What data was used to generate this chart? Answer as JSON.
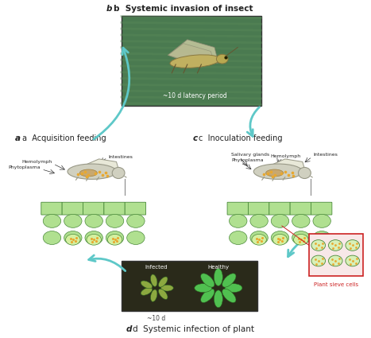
{
  "bg_color": "#ffffff",
  "title_b": "b  Systemic invasion of insect",
  "title_a": "a  Acquisition feeding",
  "title_c": "c  Inoculation feeding",
  "title_d": "d  Systemic infection of plant",
  "label_latency": "~10 d latency period",
  "label_10d": "~10 d",
  "label_infected": "Infected",
  "label_healthy": "Healthy",
  "label_phytoplasma_a": "Phytoplasma",
  "label_hemolymph_a": "Hemolymph",
  "label_intestines_a": "Intestines",
  "label_salivary": "Salivary glands",
  "label_phytoplasma_c": "Phytoplasma",
  "label_hemolymph_c": "Hemolymph",
  "label_intestines_c": "Intestines",
  "label_plant_sieve": "Plant sieve cells",
  "arrow_color": "#5ec8c8",
  "insect_photo_color": "#4a7a50",
  "plant_photo_color": "#3a5f3a",
  "insect_body_color": "#d8d8c8",
  "insect_body_edge": "#aaaaaa",
  "plant_cell_color": "#a8d88a",
  "plant_cell_edge": "#5a9a4a",
  "phytoplasma_dot_color": "#e8a830",
  "sieve_box_color": "#cc2222",
  "sieve_box_fill": "#f8e8e8"
}
